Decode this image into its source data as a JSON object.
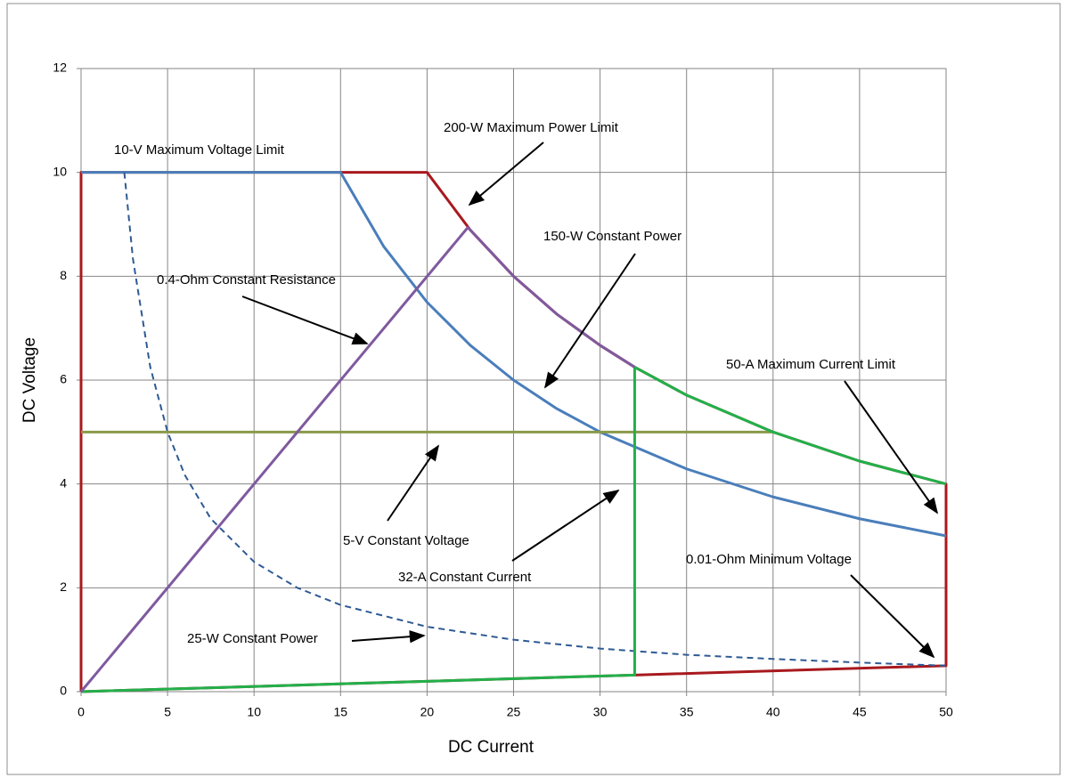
{
  "chart_data": {
    "type": "line",
    "x_label": "DC Current",
    "y_label": "DC Voltage",
    "xlim": [
      0,
      50
    ],
    "ylim": [
      0,
      12
    ],
    "xticks": [
      0,
      5,
      10,
      15,
      20,
      25,
      30,
      35,
      40,
      45,
      50
    ],
    "yticks": [
      0,
      2,
      4,
      6,
      8,
      10,
      12
    ],
    "grid": true,
    "series": [
      {
        "color": "#a8191e",
        "dash": false,
        "x": [
          0,
          0,
          20,
          22.5,
          25,
          27.5,
          30,
          32,
          35,
          40,
          45,
          50,
          50,
          32,
          0
        ],
        "values": [
          0,
          10,
          10,
          8.89,
          8,
          7.27,
          6.67,
          6.25,
          5.71,
          5,
          4.44,
          4,
          0.5,
          0.32,
          0
        ]
      },
      {
        "color": "#4a7ebb",
        "dash": false,
        "x": [
          0,
          15,
          17.5,
          20,
          22.5,
          25,
          27.5,
          30,
          35,
          40,
          45,
          50
        ],
        "values": [
          10,
          10,
          8.57,
          7.5,
          6.67,
          6,
          5.45,
          5,
          4.29,
          3.75,
          3.33,
          3
        ]
      },
      {
        "color": "#2e5a94",
        "dash": true,
        "x": [
          2.5,
          3,
          4,
          5,
          6,
          7.5,
          10,
          12.5,
          15,
          20,
          25,
          30,
          35,
          40,
          45,
          50
        ],
        "values": [
          10,
          8.33,
          6.25,
          5,
          4.17,
          3.33,
          2.5,
          2,
          1.67,
          1.25,
          1,
          0.83,
          0.71,
          0.63,
          0.56,
          0.5
        ]
      },
      {
        "color": "#8a9a4a",
        "dash": false,
        "x": [
          0,
          40
        ],
        "values": [
          5,
          5
        ]
      },
      {
        "color": "#22b04a",
        "dash": false,
        "x": [
          0,
          32,
          32,
          35,
          40,
          45,
          50
        ],
        "values": [
          0,
          0.32,
          6.25,
          5.71,
          5,
          4.44,
          4
        ]
      },
      {
        "color": "#7f5a9e",
        "dash": false,
        "x": [
          0,
          22.36,
          25,
          27.5,
          30,
          32
        ],
        "values": [
          0,
          8.94,
          8,
          7.27,
          6.67,
          6.25
        ]
      }
    ],
    "annotations": [
      "10-V Maximum Voltage Limit",
      "200-W Maximum Power Limit",
      "150-W Constant Power",
      "0.4-Ohm Constant Resistance",
      "50-A Maximum Current Limit",
      "5-V Constant Voltage",
      "32-A Constant Current",
      "0.01-Ohm Minimum Voltage",
      "25-W Constant Power"
    ]
  }
}
